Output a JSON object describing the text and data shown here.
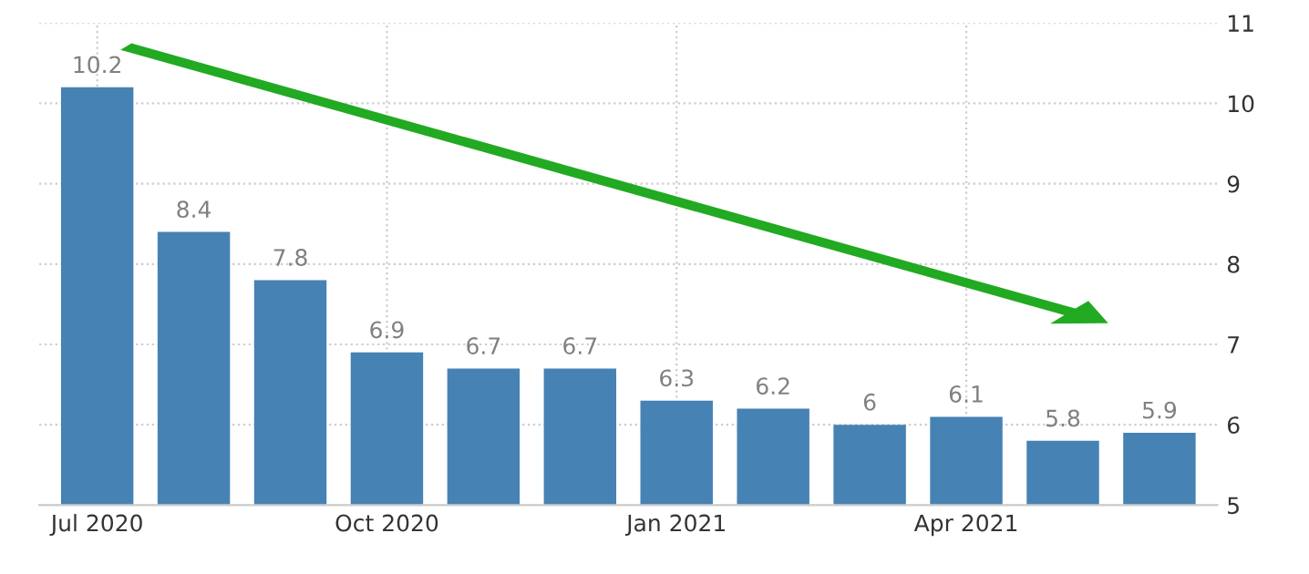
{
  "chart_data": {
    "type": "bar",
    "categories": [
      "Jul 2020",
      null,
      null,
      "Oct 2020",
      null,
      null,
      "Jan 2021",
      null,
      null,
      "Apr 2021",
      null,
      null
    ],
    "values": [
      10.2,
      8.4,
      7.8,
      6.9,
      6.7,
      6.7,
      6.3,
      6.2,
      6,
      6.1,
      5.8,
      5.9
    ],
    "color": "#4682b4",
    "ylim": [
      5,
      11
    ],
    "yticks": [
      5,
      6,
      7,
      8,
      9,
      10,
      11
    ],
    "grid": true,
    "data_labels": true
  }
}
